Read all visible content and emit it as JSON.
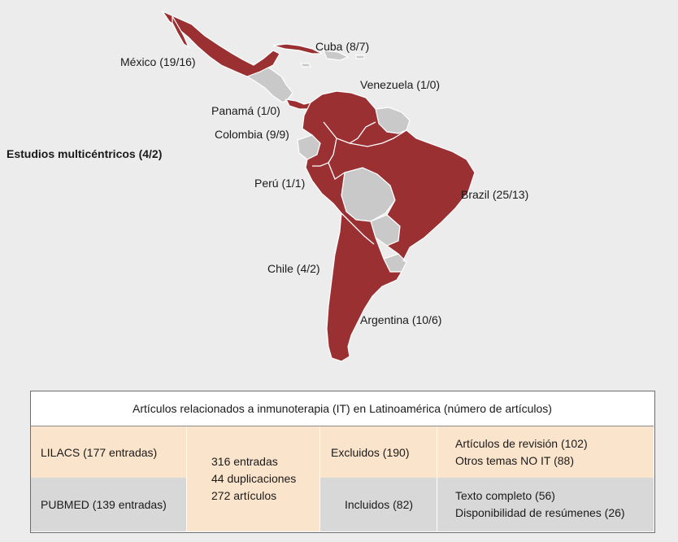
{
  "map": {
    "colors": {
      "included_country": "#9b3033",
      "other_country": "#c9c9c9",
      "border": "#ffffff",
      "background": "#ececec"
    },
    "country_labels": [
      {
        "id": "mexico",
        "text": "México (19/16)"
      },
      {
        "id": "cuba",
        "text": "Cuba (8/7)"
      },
      {
        "id": "venezuela",
        "text": "Venezuela (1/0)"
      },
      {
        "id": "panama",
        "text": "Panamá (1/0)"
      },
      {
        "id": "colombia",
        "text": "Colombia (9/9)"
      },
      {
        "id": "peru",
        "text": "Perú (1/1)"
      },
      {
        "id": "brazil",
        "text": "Brazil (25/13)"
      },
      {
        "id": "chile",
        "text": "Chile (4/2)"
      },
      {
        "id": "argentina",
        "text": "Argentina  (10/6)"
      }
    ],
    "multicentric_label": "Estudios multicéntricos (4/2)"
  },
  "table": {
    "title": "Artículos relacionados a inmunoterapia (IT) en Latinoamérica (número de artículos)",
    "colors": {
      "peach": "#fbe4cc",
      "grey": "#d8d8d8"
    },
    "sources": {
      "lilacs": "LILACS (177 entradas)",
      "pubmed": "PUBMED (139 entradas)"
    },
    "totals": {
      "entries": "316 entradas",
      "duplicates": "44 duplicaciones",
      "articles": "272 artículos"
    },
    "excluded": {
      "label": "Excluidos (190)",
      "reasons": [
        "Artículos de revisión (102)",
        "Otros temas NO IT (88)"
      ]
    },
    "included": {
      "label": "Incluidos (82)",
      "details": [
        "Texto completo (56)",
        "Disponibilidad de resúmenes (26)"
      ]
    }
  }
}
